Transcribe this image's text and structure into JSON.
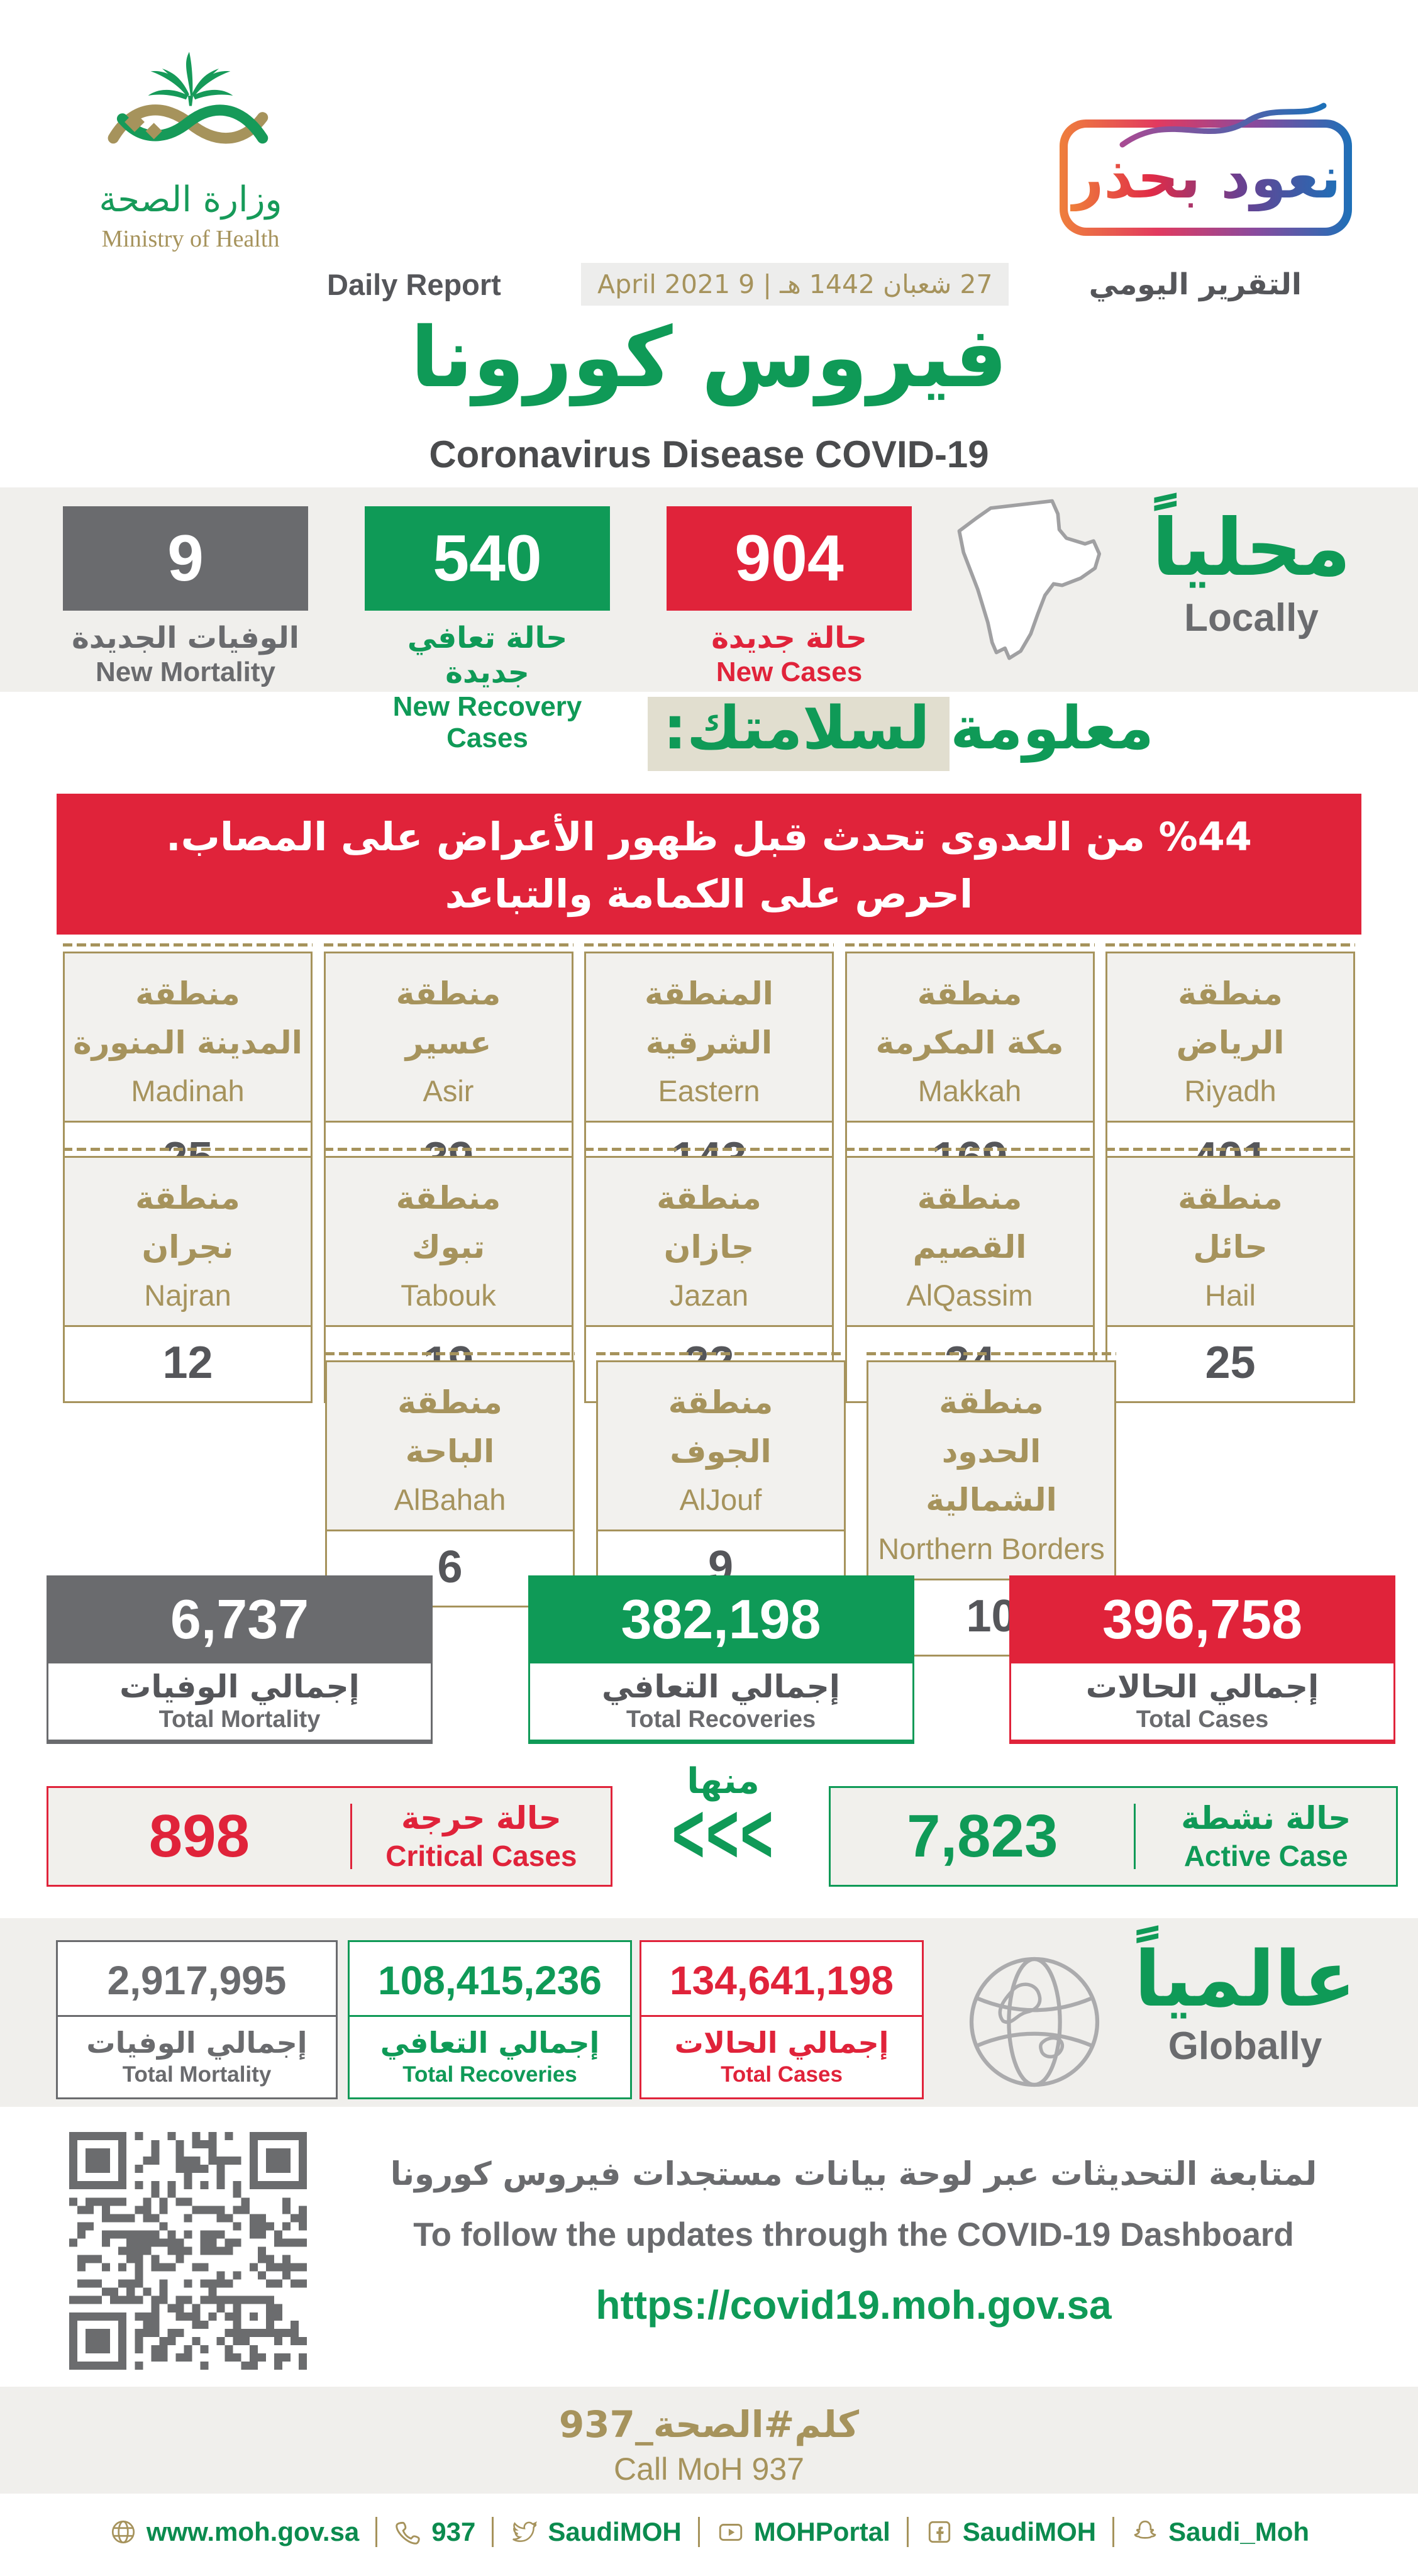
{
  "colors": {
    "green": "#0f9a57",
    "red": "#e0233a",
    "gray": "#6a6b6e",
    "gold": "#a6935c"
  },
  "header": {
    "logo_ar": "وزارة الصحة",
    "logo_en": "Ministry of Health",
    "badge": "نعود بحذر",
    "report_en": "Daily Report",
    "report_date": "27 شعبان 1442 هـ | 9 April  2021",
    "report_ar": "التقرير اليومي",
    "title_ar": "فيروس كورونا",
    "title_en": "Coronavirus Disease COVID-19"
  },
  "locally": {
    "title_ar": "محلياً",
    "title_en": "Locally",
    "new_cases": {
      "value": "904",
      "ar": "حالة جديدة",
      "en": "New Cases"
    },
    "new_recoveries": {
      "value": "540",
      "ar": "حالة تعافي جديدة",
      "en": "New Recovery Cases"
    },
    "new_mortality": {
      "value": "9",
      "ar": "الوفيات الجديدة",
      "en": "New Mortality"
    }
  },
  "info": {
    "heading": "معلومة لسلامتك:",
    "banner_line1": "%44 من العدوى تحدث قبل ظهور الأعراض على المصاب.",
    "banner_line2": "احرص على الكمامة والتباعد"
  },
  "regions": [
    {
      "ar1": "منطقة",
      "ar2": "الرياض",
      "en": "Riyadh",
      "value": "401"
    },
    {
      "ar1": "منطقة",
      "ar2": "مكة المكرمة",
      "en": "Makkah",
      "value": "169"
    },
    {
      "ar1": "المنطقة",
      "ar2": "الشرقية",
      "en": "Eastern",
      "value": "143"
    },
    {
      "ar1": "منطقة",
      "ar2": "عسير",
      "en": "Asir",
      "value": "39"
    },
    {
      "ar1": "منطقة",
      "ar2": "المدينة المنورة",
      "en": "Madinah",
      "value": "25"
    },
    {
      "ar1": "منطقة",
      "ar2": "حائل",
      "en": "Hail",
      "value": "25"
    },
    {
      "ar1": "منطقة",
      "ar2": "القصيم",
      "en": "AlQassim",
      "value": "24"
    },
    {
      "ar1": "منطقة",
      "ar2": "جازان",
      "en": "Jazan",
      "value": "22"
    },
    {
      "ar1": "منطقة",
      "ar2": "تبوك",
      "en": "Tabouk",
      "value": "19"
    },
    {
      "ar1": "منطقة",
      "ar2": "نجران",
      "en": "Najran",
      "value": "12"
    },
    {
      "ar1": "منطقة",
      "ar2": "الحدود الشمالية",
      "en": "Northern Borders",
      "value": "10"
    },
    {
      "ar1": "منطقة",
      "ar2": "الجوف",
      "en": "AlJouf",
      "value": "9"
    },
    {
      "ar1": "منطقة",
      "ar2": "الباحة",
      "en": "AlBahah",
      "value": "6"
    }
  ],
  "totals": {
    "cases": {
      "value": "396,758",
      "ar": "إجمالي الحالات",
      "en": "Total Cases"
    },
    "recoveries": {
      "value": "382,198",
      "ar": "إجمالي التعافي",
      "en": "Total Recoveries"
    },
    "mortality": {
      "value": "6,737",
      "ar": "إجمالي الوفيات",
      "en": "Total Mortality"
    }
  },
  "active": {
    "minha": "منها",
    "chevrons": "<<<",
    "active": {
      "value": "7,823",
      "ar": "حالة نشطة",
      "en": "Active Case"
    },
    "critical": {
      "value": "898",
      "ar": "حالة حرجة",
      "en": "Critical Cases"
    }
  },
  "globally": {
    "title_ar": "عالمياً",
    "title_en": "Globally",
    "cases": {
      "value": "134,641,198",
      "ar": "إجمالي الحالات",
      "en": "Total Cases"
    },
    "recoveries": {
      "value": "108,415,236",
      "ar": "إجمالي التعافي",
      "en": "Total Recoveries"
    },
    "mortality": {
      "value": "2,917,995",
      "ar": "إجمالي الوفيات",
      "en": "Total Mortality"
    }
  },
  "dashboard": {
    "ar": "لمتابعة التحديثات عبر لوحة بيانات مستجدات فيروس كورونا",
    "en": "To follow the updates through the COVID-19 Dashboard",
    "url": "https://covid19.moh.gov.sa"
  },
  "call": {
    "hashtag": "كلم#الصحة_937",
    "en": "Call MoH 937"
  },
  "footer": {
    "website": "www.moh.gov.sa",
    "phone": "937",
    "twitter": "SaudiMOH",
    "youtube": "MOHPortal",
    "facebook": "SaudiMOH",
    "snapchat": "Saudi_Moh"
  }
}
